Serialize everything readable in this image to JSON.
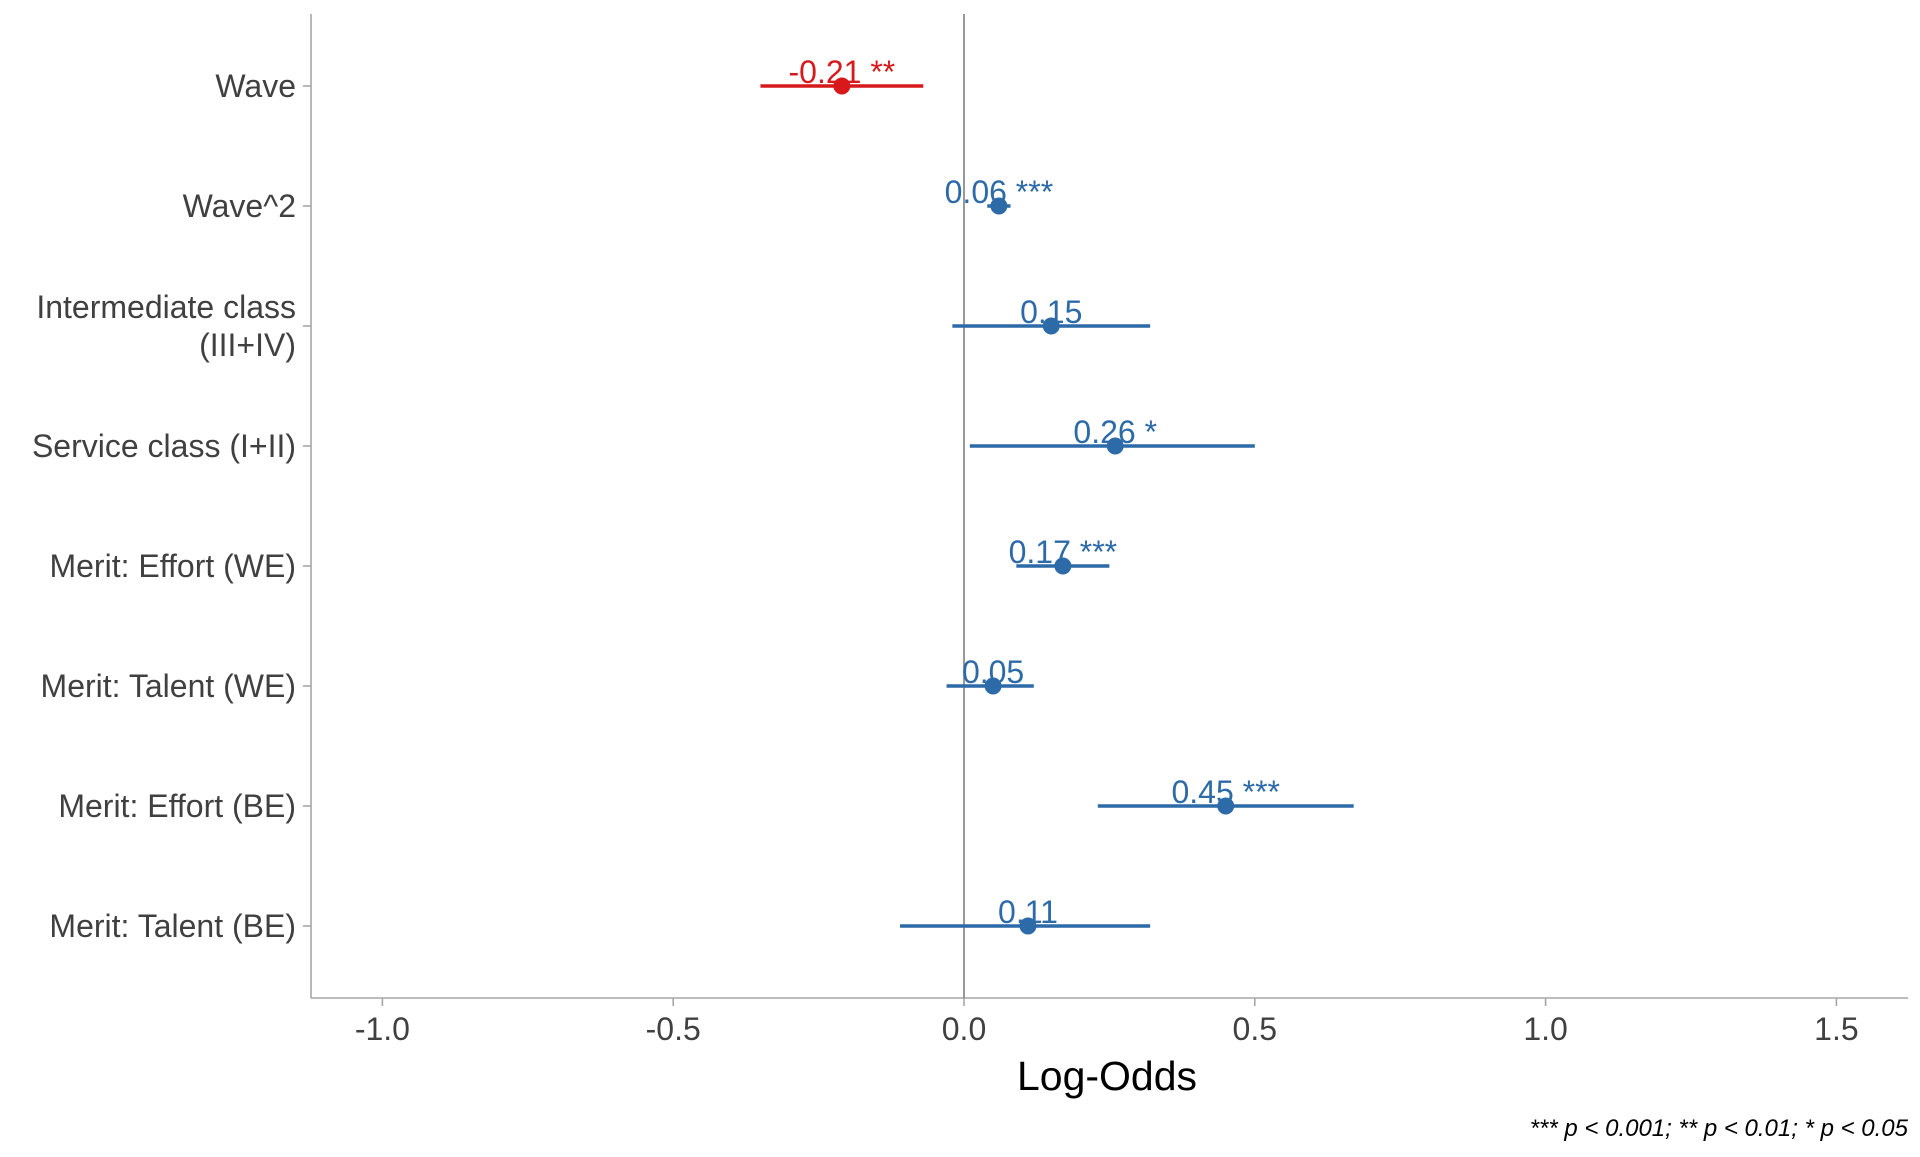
{
  "chart_data": {
    "type": "forest",
    "xlabel": "Log-Odds",
    "xlim": [
      -1.12,
      1.62
    ],
    "x_ticks": [
      -1.0,
      -0.5,
      0.0,
      0.5,
      1.0,
      1.5
    ],
    "x_tick_labels": [
      "-1.0",
      "-0.5",
      "0.0",
      "0.5",
      "1.0",
      "1.5"
    ],
    "reference_line": 0,
    "grid": false,
    "caption": "*** p < 0.001; ** p < 0.01; * p < 0.05",
    "colors": {
      "negative": "#d7191c",
      "positive": "#2c6aa8",
      "axis": "#a6a6a6",
      "reference": "#7f7f7f"
    },
    "terms": [
      {
        "label": [
          "Wave"
        ],
        "estimate": -0.21,
        "conf_low": -0.35,
        "conf_high": -0.07,
        "value_label": "-0.21 **",
        "direction": "negative"
      },
      {
        "label": [
          "Wave^2"
        ],
        "estimate": 0.06,
        "conf_low": 0.04,
        "conf_high": 0.08,
        "value_label": "0.06 ***",
        "direction": "positive"
      },
      {
        "label": [
          "Intermediate class",
          "(III+IV)"
        ],
        "estimate": 0.15,
        "conf_low": -0.02,
        "conf_high": 0.32,
        "value_label": "0.15",
        "direction": "positive"
      },
      {
        "label": [
          "Service class (I+II)"
        ],
        "estimate": 0.26,
        "conf_low": 0.01,
        "conf_high": 0.5,
        "value_label": "0.26 *",
        "direction": "positive"
      },
      {
        "label": [
          "Merit: Effort (WE)"
        ],
        "estimate": 0.17,
        "conf_low": 0.09,
        "conf_high": 0.25,
        "value_label": "0.17 ***",
        "direction": "positive"
      },
      {
        "label": [
          "Merit: Talent (WE)"
        ],
        "estimate": 0.05,
        "conf_low": -0.03,
        "conf_high": 0.12,
        "value_label": "0.05",
        "direction": "positive"
      },
      {
        "label": [
          "Merit: Effort (BE)"
        ],
        "estimate": 0.45,
        "conf_low": 0.23,
        "conf_high": 0.67,
        "value_label": "0.45 ***",
        "direction": "positive"
      },
      {
        "label": [
          "Merit: Talent (BE)"
        ],
        "estimate": 0.11,
        "conf_low": -0.11,
        "conf_high": 0.32,
        "value_label": "0.11",
        "direction": "positive"
      }
    ]
  }
}
